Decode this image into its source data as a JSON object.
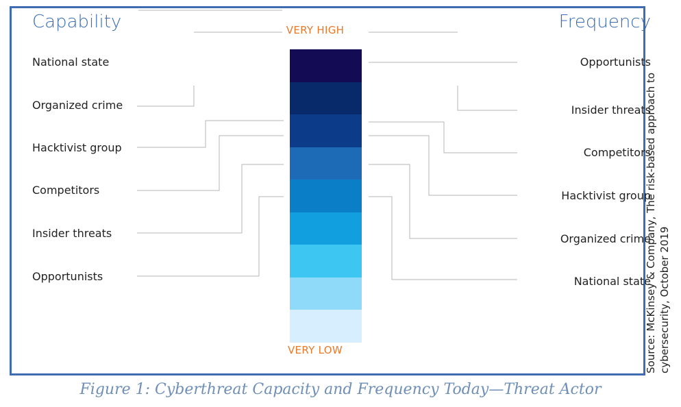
{
  "capability": {
    "title": "Capability",
    "items": [
      "National state",
      "Organized crime",
      "Hacktivist group",
      "Competitors",
      "Insider threats",
      "Opportunists"
    ]
  },
  "frequency": {
    "title": "Frequency",
    "items": [
      "Opportunists",
      "Insider threats",
      "Competitors",
      "Hacktivist group",
      "Organized crime",
      "National state"
    ]
  },
  "scale": {
    "high_label": "VERY HIGH",
    "low_label": "VERY LOW",
    "colors": [
      "#140b55",
      "#082a6b",
      "#0c3b8a",
      "#1d6ab6",
      "#0a7fc7",
      "#119fe0",
      "#3ec6f3",
      "#8fd9f9",
      "#d6eefd"
    ]
  },
  "accent_colors": {
    "title": "#3a6db3",
    "scale_label": "#e8782a",
    "frame": "#3f6cb0",
    "connector": "#b5b5b5"
  },
  "source": {
    "line1": "Source: McKinsey & Company, The risk-based approach to",
    "line2": "cybersecurity, October 2019"
  },
  "caption": "Figure 1: Cyberthreat Capacity and Frequency Today—Threat Actor"
}
